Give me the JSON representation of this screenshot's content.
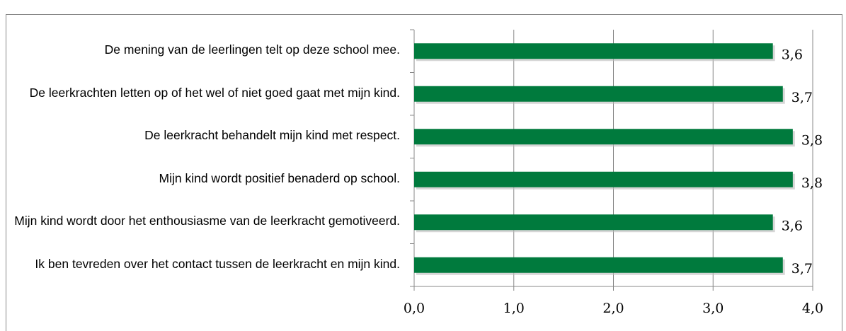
{
  "chart_data": {
    "type": "barh",
    "categories": [
      "De mening van de leerlingen telt op deze school mee.",
      "De leerkrachten letten op of het wel of niet goed gaat met mijn kind.",
      "De leerkracht behandelt mijn kind met respect.",
      "Mijn kind wordt positief benaderd op school.",
      "Mijn kind wordt door het enthousiasme van de leerkracht gemotiveerd.",
      "Ik ben tevreden over het contact tussen de leerkracht en mijn kind."
    ],
    "values": [
      3.6,
      3.7,
      3.8,
      3.8,
      3.6,
      3.7
    ],
    "value_labels": [
      "3,6",
      "3,7",
      "3,8",
      "3,8",
      "3,6",
      "3,7"
    ],
    "color": "#007a3d",
    "xlim": [
      0,
      4
    ],
    "xticks": [
      {
        "value": 0,
        "label": "0,0"
      },
      {
        "value": 1,
        "label": "1,0"
      },
      {
        "value": 2,
        "label": "2,0"
      },
      {
        "value": 3,
        "label": "3,0"
      },
      {
        "value": 4,
        "label": "4,0"
      }
    ],
    "grid": true
  }
}
